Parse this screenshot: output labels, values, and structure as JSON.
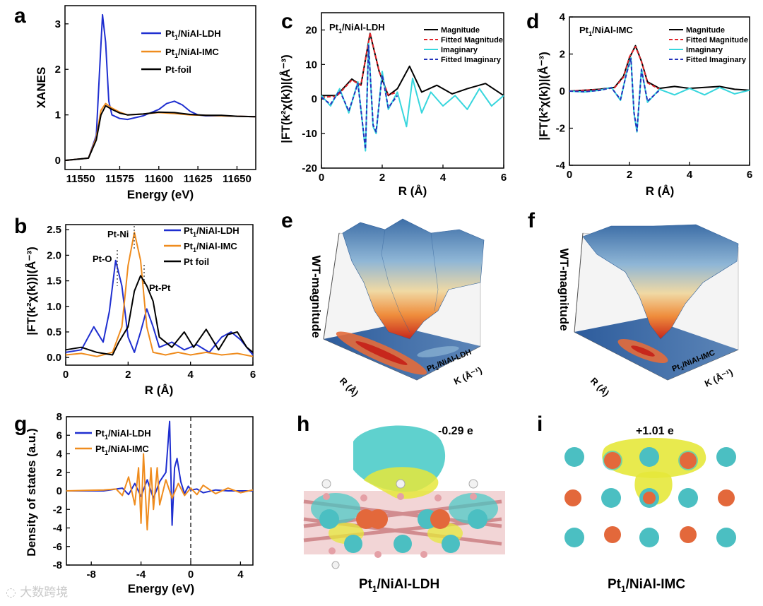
{
  "panels": {
    "a": {
      "label": "a",
      "ylabel": "XANES",
      "xlabel": "Energy (eV)",
      "xticks": [
        "11550",
        "11575",
        "11600",
        "11625",
        "11650"
      ],
      "yticks": [
        "0",
        "1",
        "2",
        "3"
      ],
      "legend": [
        "Pt1/NiAl-LDH",
        "Pt1/NiAl-IMC",
        "Pt-foil"
      ]
    },
    "b": {
      "label": "b",
      "ylabel": "|FT(k²χ(k))|(Å⁻³)",
      "xlabel": "R (Å)",
      "xticks": [
        "0",
        "2",
        "4",
        "6"
      ],
      "yticks": [
        "0.0",
        "0.5",
        "1.0",
        "1.5",
        "2.0",
        "2.5"
      ],
      "legend": [
        "Pt1/NiAl-LDH",
        "Pt1/NiAl-IMC",
        "Pt foil"
      ],
      "annotations": [
        "Pt-O",
        "Pt-Ni",
        "Pt-Pt"
      ]
    },
    "c": {
      "label": "c",
      "title": "Pt1/NiAl-LDH",
      "ylabel": "|FT(k²χ(k))|(Å⁻³)",
      "xlabel": "R (Å)",
      "xticks": [
        "0",
        "2",
        "4",
        "6"
      ],
      "yticks": [
        "-20",
        "-10",
        "0",
        "10",
        "20"
      ],
      "legend": [
        "Magnitude",
        "Fitted Magnitude",
        "Imaginary",
        "Fitted Imaginary"
      ]
    },
    "d": {
      "label": "d",
      "title": "Pt1/NiAl-IMC",
      "ylabel": "|FT(k²χ(k))|(Å⁻³)",
      "xlabel": "R (Å)",
      "xticks": [
        "0",
        "2",
        "4",
        "6"
      ],
      "yticks": [
        "-4",
        "-2",
        "0",
        "2",
        "4"
      ],
      "legend": [
        "Magnitude",
        "Fitted Magnitude",
        "Imaginary",
        "Fitted Imaginary"
      ]
    },
    "e": {
      "label": "e",
      "zlabel": "WT-magnitude",
      "rlabel": "R (Å)",
      "klabel": "K (Å⁻¹)",
      "sample": "Pt1/NiAl-LDH"
    },
    "f": {
      "label": "f",
      "zlabel": "WT-magnitude",
      "rlabel": "R (Å)",
      "klabel": "K (Å⁻¹)",
      "sample": "Pt1/NiAl-IMC"
    },
    "g": {
      "label": "g",
      "ylabel": "Density of states (a.u.)",
      "xlabel": "Energy (eV)",
      "xticks": [
        "-8",
        "-4",
        "0",
        "4"
      ],
      "yticks": [
        "-8",
        "-6",
        "-4",
        "-2",
        "0",
        "2",
        "4",
        "6",
        "8"
      ],
      "legend": [
        "Pt1/NiAl-LDH",
        "Pt1/NiAl-IMC"
      ]
    },
    "h": {
      "label": "h",
      "charge": "-0.29 e",
      "caption": "Pt1/NiAl-LDH"
    },
    "i": {
      "label": "i",
      "charge": "+1.01 e",
      "caption": "Pt1/NiAl-IMC"
    }
  },
  "watermark": "大数跨境",
  "colors": {
    "ldh": "#1f2fd0",
    "imc": "#ef8c1e",
    "foil": "#000000",
    "cyan": "#37d6dd",
    "red": "#e0242a",
    "fitblue": "#2233bb"
  },
  "chart_data": [
    {
      "type": "line",
      "title": "",
      "xlabel": "Energy (eV)",
      "ylabel": "XANES",
      "xlim": [
        11540,
        11662
      ],
      "ylim": [
        -0.2,
        3.4
      ],
      "series": [
        {
          "name": "Pt1/NiAl-LDH",
          "x": [
            11540,
            11555,
            11560,
            11562,
            11564,
            11566,
            11568,
            11570,
            11575,
            11580,
            11590,
            11600,
            11605,
            11610,
            11615,
            11620,
            11625,
            11630,
            11640,
            11650,
            11662
          ],
          "values": [
            0,
            0.05,
            0.55,
            1.9,
            3.2,
            2.6,
            1.3,
            1.0,
            0.92,
            0.9,
            0.98,
            1.12,
            1.25,
            1.3,
            1.22,
            1.08,
            1.0,
            0.98,
            0.98,
            0.97,
            0.96
          ]
        },
        {
          "name": "Pt1/NiAl-IMC",
          "x": [
            11540,
            11555,
            11560,
            11563,
            11566,
            11570,
            11575,
            11580,
            11590,
            11600,
            11610,
            11620,
            11630,
            11640,
            11650,
            11662
          ],
          "values": [
            0,
            0.05,
            0.5,
            1.1,
            1.25,
            1.15,
            1.06,
            1.0,
            1.02,
            1.05,
            1.03,
            1.0,
            0.99,
            0.98,
            0.97,
            0.96
          ]
        },
        {
          "name": "Pt-foil",
          "x": [
            11540,
            11555,
            11560,
            11563,
            11566,
            11570,
            11575,
            11580,
            11590,
            11600,
            11610,
            11620,
            11630,
            11640,
            11650,
            11662
          ],
          "values": [
            0,
            0.05,
            0.45,
            1.0,
            1.2,
            1.12,
            1.04,
            1.0,
            1.02,
            1.06,
            1.05,
            1.01,
            0.99,
            0.99,
            0.97,
            0.96
          ]
        }
      ]
    },
    {
      "type": "line",
      "title": "",
      "xlabel": "R (Å)",
      "ylabel": "|FT(k²χ(k))|(Å⁻³)",
      "xlim": [
        0,
        6
      ],
      "ylim": [
        -0.15,
        2.6
      ],
      "series": [
        {
          "name": "Pt1/NiAl-LDH",
          "x": [
            0,
            0.5,
            0.9,
            1.2,
            1.4,
            1.6,
            1.8,
            2.0,
            2.2,
            2.4,
            2.6,
            2.8,
            3.0,
            3.4,
            3.8,
            4.2,
            4.6,
            5.0,
            5.3,
            5.6,
            6.0
          ],
          "values": [
            0.1,
            0.15,
            0.6,
            0.3,
            0.9,
            1.9,
            1.4,
            0.4,
            0.1,
            0.5,
            0.95,
            0.6,
            0.2,
            0.3,
            0.15,
            0.25,
            0.1,
            0.4,
            0.5,
            0.35,
            0.05
          ]
        },
        {
          "name": "Pt1/NiAl-IMC",
          "x": [
            0,
            0.5,
            1.0,
            1.5,
            1.8,
            2.0,
            2.2,
            2.4,
            2.6,
            2.8,
            3.2,
            3.6,
            4.0,
            4.5,
            5.0,
            5.5,
            6.0
          ],
          "values": [
            0.05,
            0.08,
            0.02,
            0.1,
            0.6,
            1.8,
            2.45,
            1.9,
            0.6,
            0.1,
            0.05,
            0.1,
            0.05,
            0.1,
            0.05,
            0.08,
            0.02
          ]
        },
        {
          "name": "Pt foil",
          "x": [
            0,
            0.5,
            1.0,
            1.5,
            1.7,
            2.0,
            2.2,
            2.4,
            2.6,
            2.8,
            3.0,
            3.4,
            3.8,
            4.1,
            4.5,
            4.9,
            5.2,
            5.5,
            5.8,
            6.0
          ],
          "values": [
            0.15,
            0.2,
            0.1,
            0.05,
            0.3,
            0.6,
            1.3,
            1.6,
            1.4,
            1.1,
            0.4,
            0.2,
            0.5,
            0.2,
            0.55,
            0.15,
            0.45,
            0.5,
            0.2,
            0.1
          ]
        }
      ]
    },
    {
      "type": "line",
      "title": "Pt1/NiAl-LDH",
      "xlabel": "R (Å)",
      "ylabel": "|FT(k²χ(k))|(Å⁻³)",
      "xlim": [
        0,
        6
      ],
      "ylim": [
        -20,
        25
      ],
      "series": [
        {
          "name": "Magnitude",
          "x": [
            0,
            0.5,
            1.0,
            1.3,
            1.6,
            1.9,
            2.2,
            2.5,
            2.9,
            3.3,
            3.8,
            4.3,
            4.8,
            5.4,
            6.0
          ],
          "values": [
            1,
            1,
            5.8,
            4,
            19,
            8,
            1,
            3,
            9.5,
            2,
            4,
            1.5,
            3,
            4.5,
            1
          ]
        },
        {
          "name": "Fitted Magnitude",
          "x": [
            0,
            0.5,
            1.0,
            1.3,
            1.6,
            1.9,
            2.2,
            2.5
          ],
          "values": [
            0.5,
            0.8,
            5.5,
            4,
            19.2,
            8,
            1.2,
            2
          ]
        },
        {
          "name": "Imaginary",
          "x": [
            0,
            0.3,
            0.6,
            0.9,
            1.2,
            1.45,
            1.55,
            1.7,
            1.8,
            2.0,
            2.2,
            2.5,
            2.8,
            3.0,
            3.3,
            3.6,
            4.0,
            4.4,
            4.8,
            5.2,
            5.6,
            6.0
          ],
          "values": [
            1,
            -2,
            3,
            -4,
            5,
            -15,
            16,
            -8,
            -10,
            8,
            -3,
            2,
            -8,
            6,
            -4,
            2,
            -2,
            1,
            -3,
            3,
            -2,
            1
          ]
        },
        {
          "name": "Fitted Imaginary",
          "x": [
            0,
            0.3,
            0.6,
            0.9,
            1.2,
            1.45,
            1.55,
            1.7,
            1.8,
            2.0,
            2.2,
            2.5
          ],
          "values": [
            0.5,
            -1.5,
            2.5,
            -3.5,
            4.5,
            -14.5,
            15.5,
            -7.5,
            -9.5,
            7,
            -2.5,
            1
          ]
        }
      ]
    },
    {
      "type": "line",
      "title": "Pt1/NiAl-IMC",
      "xlabel": "R (Å)",
      "ylabel": "|FT(k²χ(k))|(Å⁻³)",
      "xlim": [
        0,
        6
      ],
      "ylim": [
        -4,
        4
      ],
      "series": [
        {
          "name": "Magnitude",
          "x": [
            0,
            0.5,
            1.0,
            1.5,
            1.8,
            2.0,
            2.2,
            2.4,
            2.6,
            3.0,
            3.5,
            4.0,
            4.5,
            5.0,
            5.5,
            6.0
          ],
          "values": [
            0,
            0.05,
            0.1,
            0.2,
            0.8,
            1.8,
            2.45,
            1.6,
            0.5,
            0.15,
            0.25,
            0.15,
            0.2,
            0.25,
            0.1,
            0.05
          ]
        },
        {
          "name": "Fitted Magnitude",
          "x": [
            0,
            0.5,
            1.0,
            1.5,
            1.8,
            2.0,
            2.2,
            2.4,
            2.6,
            3.0
          ],
          "values": [
            0,
            0.05,
            0.08,
            0.18,
            0.75,
            1.85,
            2.4,
            1.6,
            0.45,
            0.1
          ]
        },
        {
          "name": "Imaginary",
          "x": [
            0,
            0.5,
            1.0,
            1.4,
            1.7,
            1.9,
            2.05,
            2.15,
            2.25,
            2.4,
            2.6,
            3.0,
            3.5,
            4.0,
            4.5,
            5.0,
            5.5,
            6.0
          ],
          "values": [
            0,
            -0.05,
            0.05,
            0.2,
            -0.5,
            1.0,
            1.8,
            -1.2,
            -2.2,
            1.2,
            -0.6,
            0.1,
            -0.2,
            0.15,
            -0.2,
            0.2,
            -0.15,
            0.05
          ]
        },
        {
          "name": "Fitted Imaginary",
          "x": [
            0,
            0.5,
            1.0,
            1.4,
            1.7,
            1.9,
            2.05,
            2.15,
            2.25,
            2.4,
            2.6,
            3.0
          ],
          "values": [
            0,
            -0.03,
            0.04,
            0.18,
            -0.45,
            0.95,
            1.75,
            -1.15,
            -2.15,
            1.15,
            -0.55,
            0.05
          ]
        }
      ]
    },
    {
      "type": "line",
      "title": "",
      "xlabel": "Energy (eV)",
      "ylabel": "Density of states (a.u.)",
      "xlim": [
        -10,
        5
      ],
      "ylim": [
        -8,
        8
      ],
      "series": [
        {
          "name": "Pt1/NiAl-LDH",
          "x": [
            -10,
            -7,
            -5.5,
            -5,
            -4.5,
            -4,
            -3.5,
            -3,
            -2.5,
            -2,
            -1.7,
            -1.5,
            -1.3,
            -1.1,
            -0.8,
            -0.5,
            -0.2,
            0,
            0.5,
            1,
            2,
            3,
            4,
            5
          ],
          "values": [
            0,
            0,
            0.3,
            -0.4,
            0.8,
            -0.6,
            1.2,
            -0.8,
            1.0,
            2.0,
            7.5,
            -3.7,
            2.5,
            3.5,
            1.0,
            -0.3,
            0.5,
            0.1,
            0.2,
            -0.2,
            0.1,
            0,
            0,
            0
          ]
        },
        {
          "name": "Pt1/NiAl-IMC",
          "x": [
            -10,
            -7,
            -6,
            -5.5,
            -5,
            -4.5,
            -4.2,
            -4,
            -3.8,
            -3.5,
            -3.2,
            -3,
            -2.7,
            -2.5,
            -2,
            -1.5,
            -1,
            -0.5,
            0,
            0.5,
            1,
            2,
            3,
            4,
            5
          ],
          "values": [
            0,
            0.1,
            0.2,
            -0.5,
            1.5,
            -1.5,
            2.5,
            -3.5,
            4.0,
            -4.2,
            2.5,
            -2.0,
            2.5,
            -1.5,
            1.2,
            -0.8,
            0.8,
            -0.5,
            0.3,
            -0.4,
            0.6,
            -0.3,
            0.3,
            -0.2,
            0.1
          ]
        }
      ]
    }
  ]
}
